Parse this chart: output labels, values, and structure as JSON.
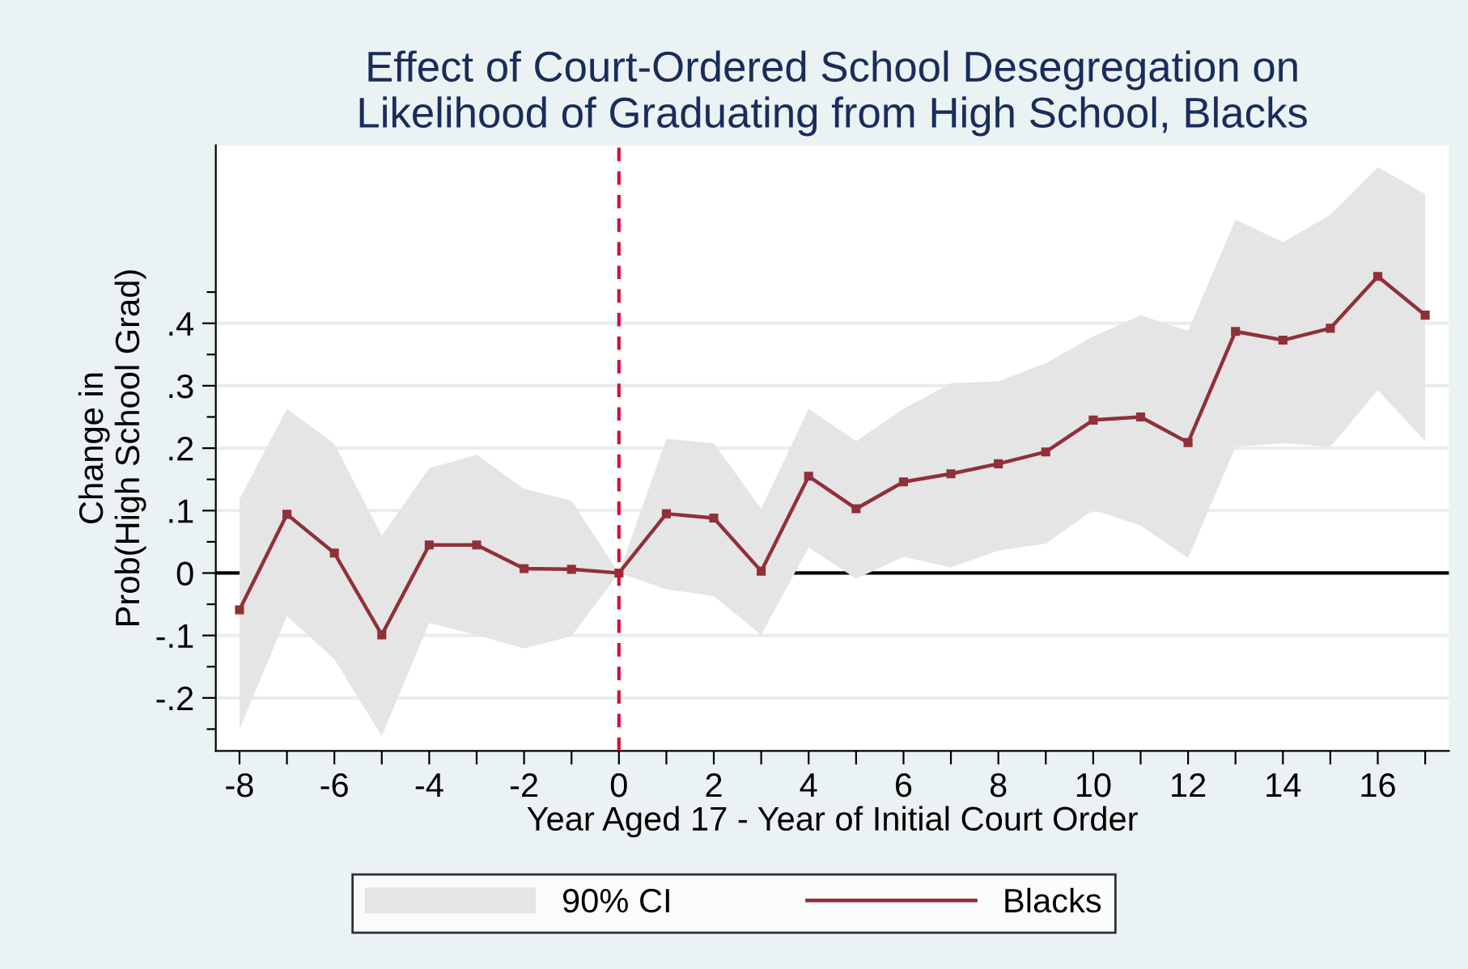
{
  "chart_data": {
    "type": "line",
    "title": "Effect of Court-Ordered School Desegregation on\nLikelihood of Graduating from High School, Blacks",
    "xlabel": "Year Aged 17 - Year of Initial Court Order",
    "ylabel": "Change in\nProb(High School Grad)",
    "x": [
      -8,
      -7,
      -6,
      -5,
      -4,
      -3,
      -2,
      -1,
      0,
      1,
      2,
      3,
      4,
      5,
      6,
      7,
      8,
      9,
      10,
      11,
      12,
      13,
      14,
      15,
      16,
      17
    ],
    "series": [
      {
        "name": "90% CI",
        "type": "area",
        "color": "#e5e5e5",
        "values": [
          null,
          null,
          null,
          null,
          null,
          null,
          null,
          null,
          null,
          null,
          null,
          null,
          null,
          null,
          null,
          null,
          null,
          null,
          null,
          null,
          null,
          null,
          null,
          null,
          null,
          null
        ],
        "lower": [
          -0.25,
          -0.069,
          -0.138,
          -0.261,
          -0.08,
          -0.099,
          -0.121,
          -0.101,
          0,
          -0.026,
          -0.037,
          -0.099,
          0.041,
          -0.009,
          0.026,
          0.009,
          0.036,
          0.047,
          0.101,
          0.076,
          0.024,
          0.202,
          0.208,
          0.202,
          0.293,
          0.211
        ],
        "upper": [
          0.118,
          0.263,
          0.207,
          0.06,
          0.168,
          0.189,
          0.135,
          0.116,
          0,
          0.215,
          0.208,
          0.103,
          0.263,
          0.211,
          0.263,
          0.304,
          0.307,
          0.336,
          0.379,
          0.413,
          0.388,
          0.566,
          0.53,
          0.574,
          0.65,
          0.607
        ]
      },
      {
        "name": "Blacks",
        "color": "#903038",
        "marker": "square",
        "line_style": "solid",
        "values": [
          -0.059,
          0.094,
          0.032,
          -0.099,
          0.045,
          0.045,
          0.007,
          0.006,
          0,
          0.095,
          0.088,
          0.003,
          0.155,
          0.103,
          0.146,
          0.159,
          0.175,
          0.194,
          0.245,
          0.25,
          0.209,
          0.387,
          0.373,
          0.392,
          0.475,
          0.413
        ]
      }
    ],
    "xlim": [
      -8.5,
      17.5
    ],
    "xticks": [
      -8,
      {
        "value": -7,
        "label": null
      },
      -6,
      {
        "value": -5,
        "label": null
      },
      -4,
      {
        "value": -3,
        "label": null
      },
      -2,
      {
        "value": -1,
        "label": null
      },
      0,
      {
        "value": 1,
        "label": null
      },
      2,
      {
        "value": 3,
        "label": null
      },
      4,
      {
        "value": 5,
        "label": null
      },
      6,
      {
        "value": 7,
        "label": null
      },
      8,
      {
        "value": 9,
        "label": null
      },
      10,
      {
        "value": 11,
        "label": null
      },
      12,
      {
        "value": 13,
        "label": null
      },
      14,
      {
        "value": 15,
        "label": null
      },
      16,
      {
        "value": 17,
        "label": null
      }
    ],
    "ylim": [
      -0.285,
      0.685
    ],
    "yticks": [
      {
        "value": -0.25,
        "label": null
      },
      {
        "value": -0.2,
        "label": "-.2"
      },
      {
        "value": -0.15,
        "label": null
      },
      {
        "value": -0.1,
        "label": "-.1"
      },
      {
        "value": -0.05,
        "label": null
      },
      0,
      {
        "value": 0.05,
        "label": null
      },
      {
        "value": 0.1,
        "label": ".1"
      },
      {
        "value": 0.15,
        "label": null
      },
      {
        "value": 0.2,
        "label": ".2"
      },
      {
        "value": 0.25,
        "label": null
      },
      {
        "value": 0.3,
        "label": ".3"
      },
      {
        "value": 0.35,
        "label": null
      },
      {
        "value": 0.4,
        "label": ".4"
      },
      {
        "value": 0.45,
        "label": null
      }
    ],
    "ref_lines": [
      {
        "axis": "x",
        "value": 0,
        "color": "#d0103a",
        "line_style": "dashed"
      },
      {
        "axis": "y",
        "value": 0,
        "color": "#000000",
        "line_style": "solid"
      }
    ],
    "grid": "y",
    "legend": "bottom"
  }
}
